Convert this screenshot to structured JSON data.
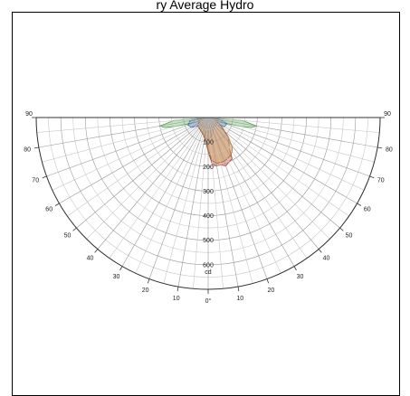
{
  "title": "ry Average Hydro",
  "chart_data": {
    "type": "polar-area",
    "angle_unit": "°",
    "radial_unit": "cd",
    "radial_range": [
      0,
      700
    ],
    "angle_range": [
      -90,
      90
    ],
    "angle_ticks": [
      {
        "angle": -90,
        "label": "90"
      },
      {
        "angle": -80,
        "label": "80"
      },
      {
        "angle": -70,
        "label": "70"
      },
      {
        "angle": -60,
        "label": "60"
      },
      {
        "angle": -50,
        "label": "50"
      },
      {
        "angle": -40,
        "label": "40"
      },
      {
        "angle": -30,
        "label": "30"
      },
      {
        "angle": -20,
        "label": "20"
      },
      {
        "angle": -10,
        "label": "10"
      },
      {
        "angle": 0,
        "label": "0°"
      },
      {
        "angle": 10,
        "label": "10"
      },
      {
        "angle": 20,
        "label": "20"
      },
      {
        "angle": 30,
        "label": "30"
      },
      {
        "angle": 40,
        "label": "40"
      },
      {
        "angle": 50,
        "label": "50"
      },
      {
        "angle": 60,
        "label": "60"
      },
      {
        "angle": 70,
        "label": "70"
      },
      {
        "angle": 80,
        "label": "80"
      },
      {
        "angle": 90,
        "label": "90"
      }
    ],
    "radial_ticks": [
      {
        "value": 100,
        "label": "100"
      },
      {
        "value": 200,
        "label": "200"
      },
      {
        "value": 300,
        "label": "300"
      },
      {
        "value": 400,
        "label": "400"
      },
      {
        "value": 500,
        "label": "500"
      },
      {
        "value": 600,
        "label": "600"
      }
    ],
    "grid": true,
    "series": [
      {
        "color": "#4a9a4a",
        "fill": "#8fcf8f",
        "points": [
          [
            -90,
            0
          ],
          [
            -85,
            140
          ],
          [
            -80,
            200
          ],
          [
            -77,
            180
          ],
          [
            -75,
            140
          ],
          [
            -72,
            80
          ],
          [
            -70,
            55
          ],
          [
            -60,
            40
          ],
          [
            -45,
            40
          ],
          [
            -30,
            50
          ],
          [
            -15,
            55
          ],
          [
            -5,
            60
          ],
          [
            0,
            62
          ],
          [
            5,
            60
          ],
          [
            15,
            55
          ],
          [
            30,
            50
          ],
          [
            45,
            40
          ],
          [
            60,
            40
          ],
          [
            70,
            55
          ],
          [
            72,
            80
          ],
          [
            75,
            140
          ],
          [
            77,
            180
          ],
          [
            80,
            200
          ],
          [
            85,
            140
          ],
          [
            90,
            0
          ]
        ]
      },
      {
        "color": "#2a5aa0",
        "fill": "#5a86c4",
        "points": [
          [
            -90,
            0
          ],
          [
            -80,
            75
          ],
          [
            -70,
            88
          ],
          [
            -60,
            80
          ],
          [
            -45,
            45
          ],
          [
            -30,
            40
          ],
          [
            -15,
            60
          ],
          [
            0,
            95
          ],
          [
            15,
            70
          ],
          [
            30,
            45
          ],
          [
            45,
            45
          ],
          [
            60,
            75
          ],
          [
            70,
            80
          ],
          [
            75,
            72
          ],
          [
            85,
            30
          ],
          [
            90,
            0
          ]
        ]
      },
      {
        "color": "#b03030",
        "fill": "#d47878",
        "points": [
          [
            -90,
            0
          ],
          [
            -70,
            40
          ],
          [
            -50,
            55
          ],
          [
            -30,
            62
          ],
          [
            -15,
            75
          ],
          [
            -5,
            100
          ],
          [
            0,
            140
          ],
          [
            5,
            190
          ],
          [
            10,
            200
          ],
          [
            15,
            200
          ],
          [
            20,
            210
          ],
          [
            25,
            200
          ],
          [
            30,
            195
          ],
          [
            35,
            150
          ],
          [
            40,
            130
          ],
          [
            45,
            120
          ],
          [
            50,
            90
          ],
          [
            60,
            55
          ],
          [
            75,
            30
          ],
          [
            90,
            0
          ]
        ]
      },
      {
        "color": "#9a6a20",
        "fill": "#d4a860",
        "points": [
          [
            -90,
            0
          ],
          [
            -70,
            38
          ],
          [
            -50,
            52
          ],
          [
            -30,
            60
          ],
          [
            -15,
            70
          ],
          [
            -5,
            95
          ],
          [
            0,
            130
          ],
          [
            5,
            175
          ],
          [
            10,
            190
          ],
          [
            15,
            190
          ],
          [
            20,
            190
          ],
          [
            25,
            185
          ],
          [
            30,
            180
          ],
          [
            35,
            170
          ],
          [
            40,
            150
          ],
          [
            45,
            115
          ],
          [
            50,
            85
          ],
          [
            60,
            50
          ],
          [
            75,
            28
          ],
          [
            90,
            0
          ]
        ]
      }
    ]
  }
}
